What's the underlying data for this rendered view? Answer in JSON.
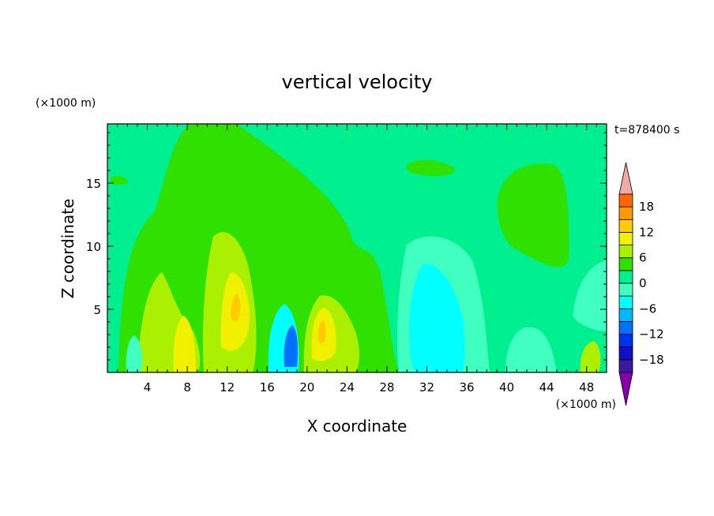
{
  "chart_data": {
    "type": "heatmap",
    "title": "vertical velocity",
    "xlabel": "X coordinate",
    "ylabel": "Z coordinate",
    "x_unit": "(×1000 m)",
    "y_unit": "(×1000 m)",
    "time_label": "t=878400 s",
    "xlim": [
      0,
      50
    ],
    "ylim": [
      0,
      19.7
    ],
    "x_ticks": [
      4,
      8,
      12,
      16,
      20,
      24,
      28,
      32,
      36,
      40,
      44,
      48
    ],
    "y_ticks": [
      5,
      10,
      15
    ],
    "colorbar": {
      "tick_labels": [
        "18",
        "12",
        "6",
        "0",
        "−6",
        "−12",
        "−18"
      ],
      "tick_values": [
        18,
        12,
        6,
        0,
        -6,
        -12,
        -18
      ],
      "levels": [
        -21,
        -18,
        -15,
        -12,
        -9,
        -6,
        -3,
        0,
        3,
        6,
        9,
        12,
        15,
        18,
        21
      ],
      "colors": [
        "#8800aa",
        "#3a1aa0",
        "#1010c8",
        "#0030f0",
        "#0070ff",
        "#00b8ff",
        "#00ffff",
        "#40ffc0",
        "#00f090",
        "#30e000",
        "#aaf000",
        "#f0f000",
        "#ffcc00",
        "#ff9900",
        "#ff6600",
        "#ff1a1a",
        "#f0a8a8"
      ]
    },
    "features": [
      {
        "x": 8,
        "z": 2.5,
        "peak": 9
      },
      {
        "x": 13,
        "z": 5.5,
        "peak": 12
      },
      {
        "x": 22,
        "z": 3.5,
        "peak": 12
      },
      {
        "x": 18.5,
        "z": 2.5,
        "peak": -9
      },
      {
        "x": 33,
        "z": 6,
        "peak": -6
      }
    ]
  }
}
